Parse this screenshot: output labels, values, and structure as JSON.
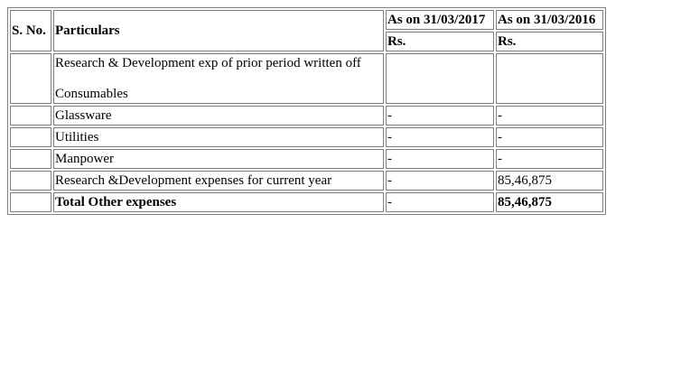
{
  "table": {
    "header": {
      "sno": "S. No.",
      "particulars": "Particulars",
      "col1": "As on 31/03/2017",
      "col2": "As on 31/03/2016",
      "col1_unit": "Rs.",
      "col2_unit": "Rs."
    },
    "rows": [
      {
        "sno": "",
        "particulars_line1": "Research & Development exp of prior period written off",
        "particulars_line2": "Consumables",
        "col1": "",
        "col2": ""
      },
      {
        "sno": "",
        "particulars": "Glassware",
        "col1": "-",
        "col2": "-"
      },
      {
        "sno": "",
        "particulars": "Utilities",
        "col1": "-",
        "col2": "-"
      },
      {
        "sno": "",
        "particulars": "Manpower",
        "col1": "-",
        "col2": "-"
      },
      {
        "sno": "",
        "particulars": "Research &Development expenses for current year",
        "col1": "-",
        "col2": "85,46,875"
      },
      {
        "sno": "",
        "particulars": "Total Other expenses",
        "col1": "-",
        "col2": "85,46,875"
      }
    ]
  }
}
